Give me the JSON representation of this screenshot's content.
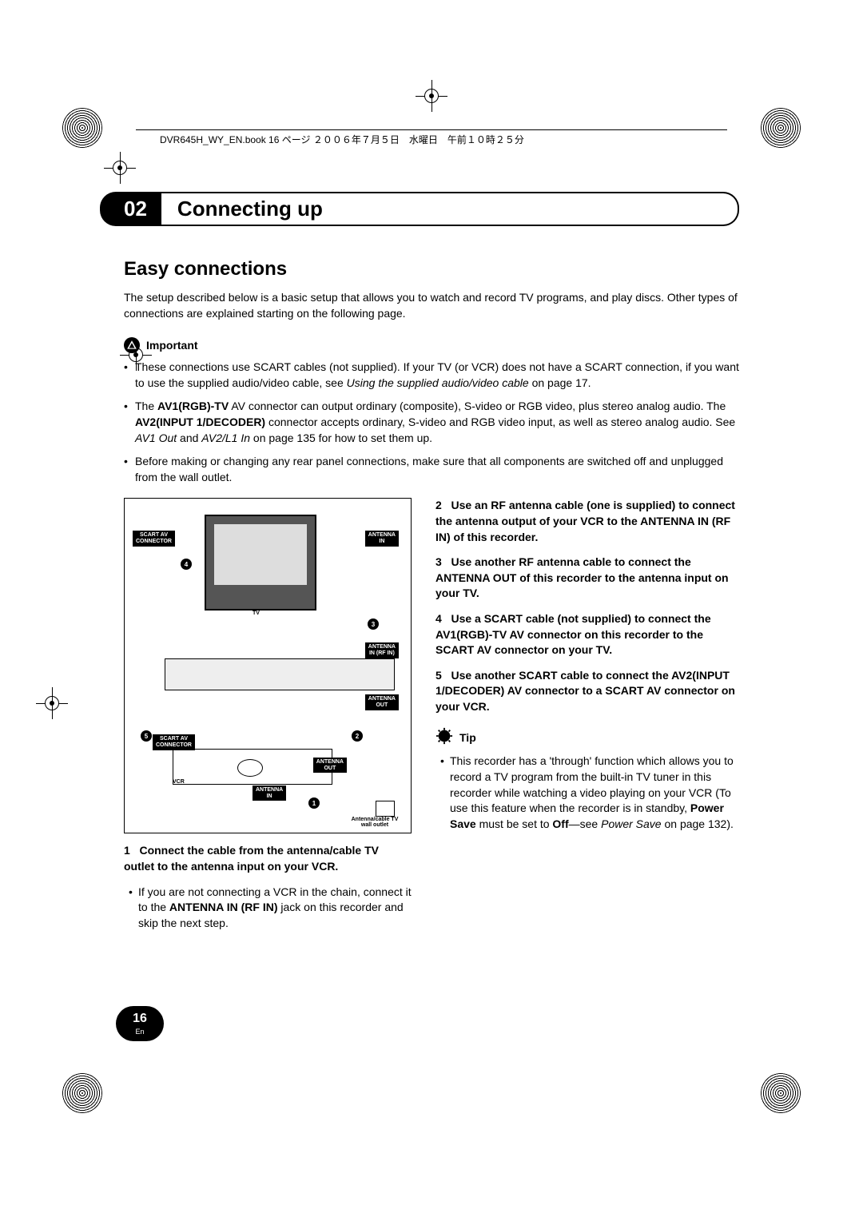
{
  "crop_header": "DVR645H_WY_EN.book 16 ページ ２００６年７月５日　水曜日　午前１０時２５分",
  "chapter_number": "02",
  "chapter_title": "Connecting up",
  "section_title": "Easy connections",
  "intro": "The setup described below is a basic setup that allows you to watch and record TV programs, and play discs. Other types of connections are explained starting on the following page.",
  "important_label": "Important",
  "important_bullets": [
    {
      "pre": "These connections use SCART cables (not supplied). If your TV (or VCR) does not have a SCART connection, if you want to use the supplied audio/video cable, see ",
      "em": "Using the supplied audio/video cable",
      "post": " on page 17."
    },
    {
      "html": "The <b>AV1(RGB)-TV</b> AV connector can output ordinary (composite), S-video or RGB video, plus stereo analog audio. The <b>AV2(INPUT 1/DECODER)</b> connector accepts ordinary, S-video and RGB video input, as well as stereo analog audio. See <i>AV1 Out</i> and <i>AV2/L1 In</i> on page 135 for how to set them up."
    },
    {
      "text": "Before making or changing any rear panel connections, make sure that all components are switched off and unplugged from the wall outlet."
    }
  ],
  "diagram_labels": {
    "scart_av_top": "SCART AV\nCONNECTOR",
    "antenna_in_top": "ANTENNA\nIN",
    "tv": "TV",
    "antenna_in_rf": "ANTENNA\nIN (RF IN)",
    "antenna_out_mid": "ANTENNA\nOUT",
    "scart_av_bottom": "SCART AV\nCONNECTOR",
    "antenna_out_bot": "ANTENNA\nOUT",
    "vcr": "VCR",
    "antenna_in_bot": "ANTENNA\nIN",
    "wall": "Antenna/cable TV\nwall outlet",
    "circles": [
      "1",
      "2",
      "3",
      "4",
      "5"
    ]
  },
  "step1": {
    "num": "1",
    "bold": "Connect the cable from the antenna/cable TV outlet to the antenna input on your VCR."
  },
  "step1_sub": {
    "pre": "If you are not connecting a VCR in the chain, connect it to the ",
    "bold": "ANTENNA IN (RF IN)",
    "post": " jack on this recorder and skip the next step."
  },
  "step2": {
    "num": "2",
    "bold": "Use an RF antenna cable (one is supplied) to connect the antenna output of your VCR to the ANTENNA IN (RF IN) of this recorder."
  },
  "step3": {
    "num": "3",
    "bold": "Use another RF antenna cable to connect the ANTENNA OUT of this recorder to the antenna input on your TV."
  },
  "step4": {
    "num": "4",
    "bold": "Use a SCART cable (not supplied) to connect the AV1(RGB)-TV AV connector on this recorder to the SCART AV connector on your TV."
  },
  "step5": {
    "num": "5",
    "bold": "Use another SCART cable to connect the AV2(INPUT 1/DECODER) AV connector to a SCART AV connector on your VCR."
  },
  "tip_label": "Tip",
  "tip_text": {
    "pre": "This recorder has a 'through' function which allows you to record a TV program from the built-in TV tuner in this recorder while watching a video playing on your VCR (To use this feature when the recorder is in standby, ",
    "bold1": "Power Save",
    "mid": " must be set to ",
    "bold2": "Off",
    "post": "—see ",
    "em": "Power Save",
    "tail": " on page 132)."
  },
  "page_number": "16",
  "page_lang": "En"
}
